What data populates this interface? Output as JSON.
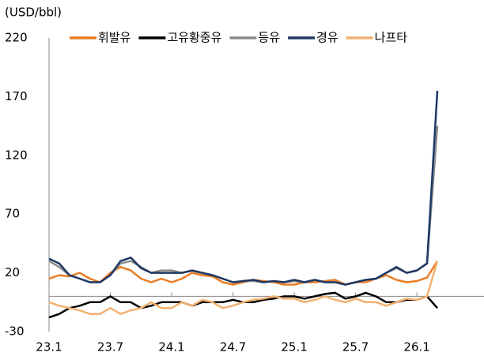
{
  "chart_data": {
    "type": "line",
    "y_axis_label": "(USD/bbl)",
    "categories": [
      "23.1",
      null,
      null,
      null,
      null,
      null,
      "23.7",
      null,
      null,
      null,
      null,
      null,
      "24.1",
      null,
      null,
      null,
      null,
      null,
      "24.7",
      null,
      null,
      null,
      null,
      null,
      "25.1",
      null,
      null,
      null,
      null,
      null,
      "25.7",
      null,
      null,
      null,
      null,
      null,
      "26.1",
      null,
      null
    ],
    "series": [
      {
        "name": "휘발유",
        "color": "#e87d25",
        "values": [
          15,
          18,
          17,
          20,
          15,
          12,
          20,
          25,
          22,
          15,
          12,
          15,
          12,
          15,
          20,
          18,
          17,
          12,
          10,
          12,
          14,
          13,
          12,
          10,
          10,
          12,
          12,
          13,
          14,
          10,
          12,
          12,
          15,
          18,
          14,
          12,
          13,
          16,
          30
        ]
      },
      {
        "name": "고유황중유",
        "color": "#000000",
        "values": [
          -18,
          -15,
          -10,
          -8,
          -5,
          -5,
          0,
          -5,
          -5,
          -10,
          -8,
          -5,
          -5,
          -5,
          -8,
          -5,
          -5,
          -5,
          -3,
          -5,
          -5,
          -3,
          -2,
          0,
          0,
          -2,
          0,
          2,
          3,
          -2,
          0,
          3,
          0,
          -5,
          -5,
          -3,
          -3,
          0,
          -10
        ]
      },
      {
        "name": "등유",
        "color": "#8c8c8c",
        "values": [
          30,
          25,
          18,
          15,
          12,
          12,
          18,
          28,
          30,
          25,
          20,
          22,
          22,
          20,
          22,
          20,
          18,
          15,
          12,
          13,
          13,
          12,
          13,
          12,
          13,
          12,
          14,
          12,
          12,
          10,
          12,
          14,
          15,
          20,
          24,
          20,
          22,
          28,
          145
        ]
      },
      {
        "name": "경유",
        "color": "#1f3864",
        "values": [
          32,
          28,
          18,
          15,
          12,
          12,
          18,
          30,
          33,
          24,
          20,
          20,
          20,
          20,
          22,
          20,
          18,
          15,
          12,
          13,
          14,
          12,
          13,
          12,
          14,
          12,
          14,
          12,
          12,
          10,
          12,
          14,
          15,
          20,
          25,
          20,
          22,
          28,
          175
        ]
      },
      {
        "name": "나프타",
        "color": "#f2b16f",
        "values": [
          -5,
          -8,
          -10,
          -12,
          -15,
          -15,
          -10,
          -15,
          -12,
          -10,
          -5,
          -10,
          -10,
          -5,
          -8,
          -3,
          -5,
          -10,
          -8,
          -5,
          -3,
          -2,
          0,
          -2,
          -2,
          -5,
          -3,
          0,
          -3,
          -5,
          -2,
          -5,
          -5,
          -8,
          -5,
          -2,
          -3,
          0,
          30
        ]
      }
    ],
    "ylim": [
      -30,
      220
    ],
    "yticks": [
      -30,
      20,
      70,
      120,
      170,
      220
    ]
  }
}
